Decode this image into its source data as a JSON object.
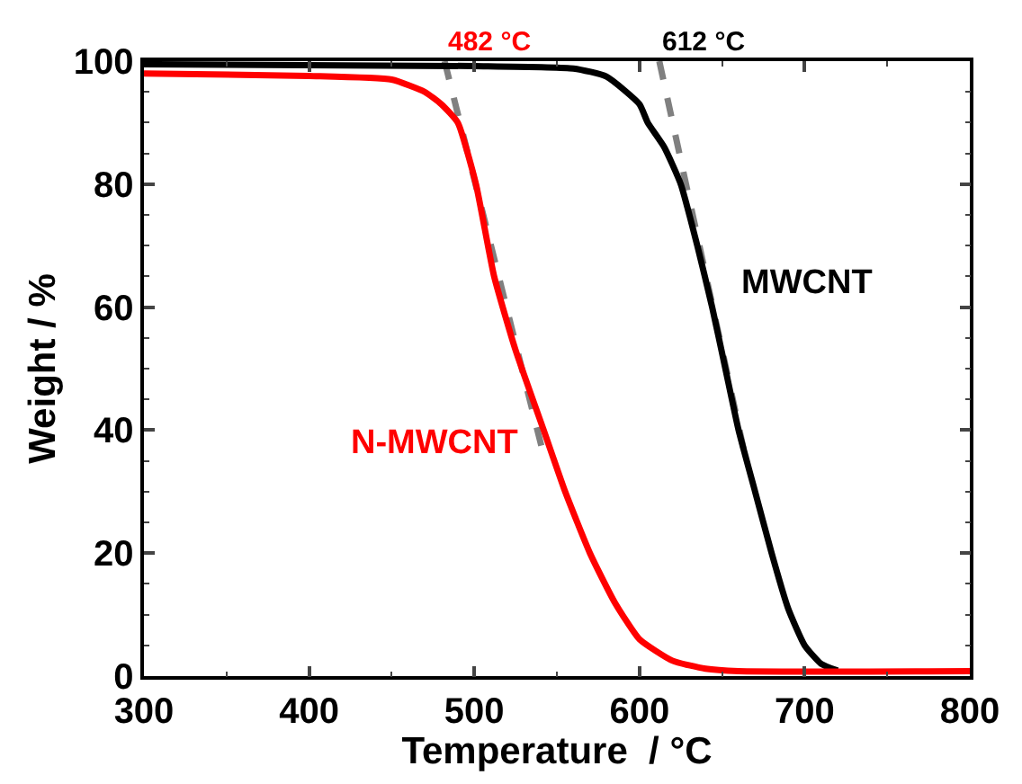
{
  "chart_data": {
    "type": "line",
    "xlabel": "Temperature  / °C",
    "ylabel": "Weight / %",
    "xlim": [
      300,
      800
    ],
    "xticks": [
      300,
      400,
      500,
      600,
      700,
      800
    ],
    "ylim": [
      0,
      100
    ],
    "yticks": [
      0,
      20,
      40,
      60,
      80,
      100
    ],
    "legend": false,
    "marker": "none",
    "line_style": "solid",
    "series": [
      {
        "name": "N-MWCNT",
        "color": "#ff0000",
        "x": [
          300,
          400,
          450,
          470,
          480,
          490,
          501,
          512,
          525,
          542,
          555,
          570,
          585,
          600,
          620,
          640,
          660,
          800
        ],
        "values": [
          98,
          97.6,
          97,
          95,
          93,
          90,
          80,
          65,
          53,
          40,
          30,
          20,
          12,
          6,
          2.5,
          1.2,
          0.8,
          0.8
        ]
      },
      {
        "name": "MWCNT",
        "color": "#000000",
        "x": [
          300,
          500,
          560,
          580,
          600,
          605,
          615,
          625,
          635,
          644,
          652,
          660,
          670,
          680,
          690,
          700,
          710,
          720
        ],
        "values": [
          99.5,
          99.2,
          98.8,
          97.5,
          93,
          90,
          86,
          80,
          70,
          60,
          50,
          40,
          30,
          20,
          11,
          5,
          2,
          0.9
        ]
      },
      {
        "color": "#808080",
        "line_style": "dashed",
        "x": [
          482,
          541
        ],
        "values": [
          100,
          37
        ]
      },
      {
        "color": "#808080",
        "line_style": "dashed",
        "x": [
          612,
          663
        ],
        "values": [
          100,
          37
        ]
      }
    ],
    "annotations": [
      {
        "text": "482 °C",
        "x": 482,
        "y": 100
      },
      {
        "text": "612 °C",
        "x": 612,
        "y": 100
      }
    ]
  }
}
